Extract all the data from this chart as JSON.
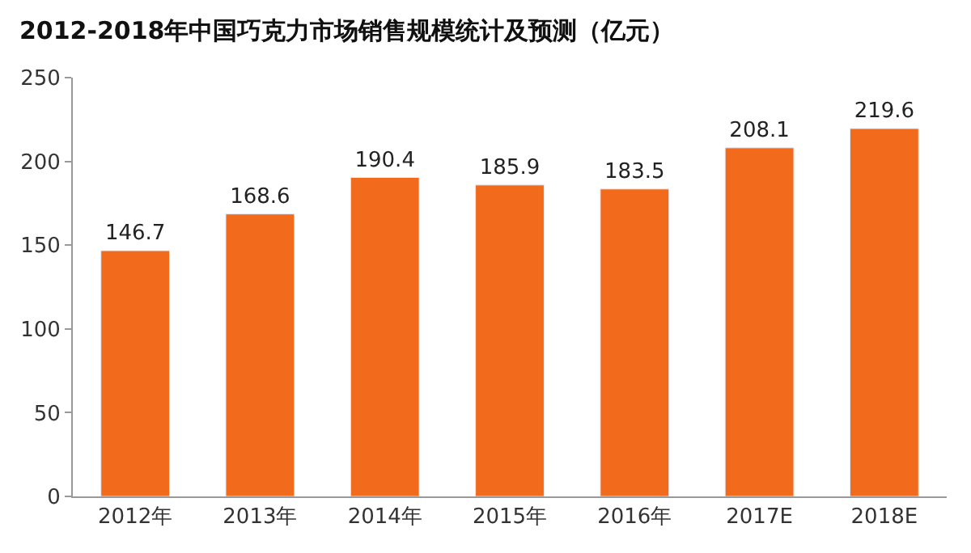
{
  "chart_data": {
    "type": "bar",
    "title": "2012-2018年中国巧克力市场销售规模统计及预测（亿元）",
    "categories": [
      "2012年",
      "2013年",
      "2014年",
      "2015年",
      "2016年",
      "2017E",
      "2018E"
    ],
    "values": [
      146.7,
      168.6,
      190.4,
      185.9,
      183.5,
      208.1,
      219.6
    ],
    "color": "#f26a1b",
    "ylim": [
      0,
      250
    ],
    "yticks": [
      0,
      50,
      100,
      150,
      200,
      250
    ],
    "data_labels": true
  }
}
